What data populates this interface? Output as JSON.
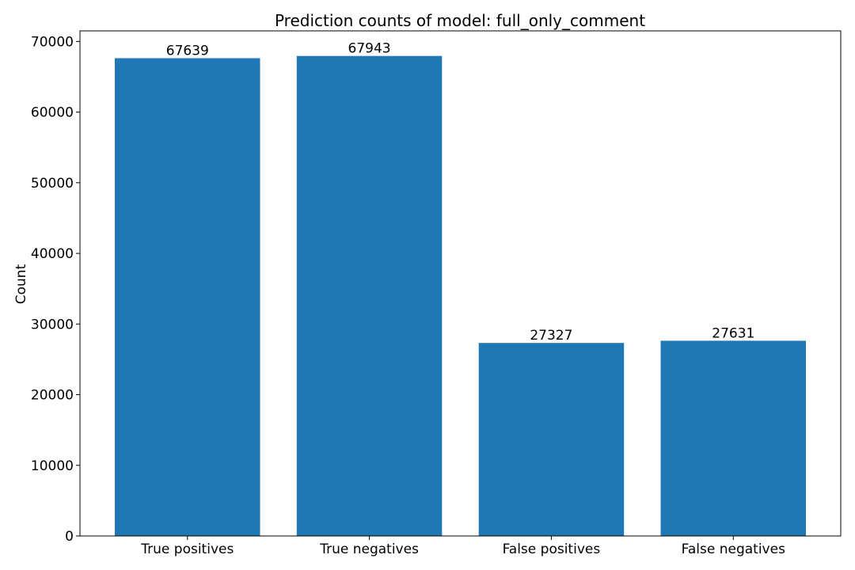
{
  "chart_data": {
    "type": "bar",
    "title": "Prediction counts of model: full_only_comment",
    "xlabel": "",
    "ylabel": "Count",
    "categories": [
      "True positives",
      "True negatives",
      "False positives",
      "False negatives"
    ],
    "values": [
      67639,
      67943,
      27327,
      27631
    ],
    "value_labels": [
      "67639",
      "67943",
      "27327",
      "27631"
    ],
    "ylim": [
      0,
      71500
    ],
    "yticks": [
      0,
      10000,
      20000,
      30000,
      40000,
      50000,
      60000,
      70000
    ],
    "ytick_labels": [
      "0",
      "10000",
      "20000",
      "30000",
      "40000",
      "50000",
      "60000",
      "70000"
    ],
    "grid": false,
    "legend": "none",
    "colors": {
      "bar": "#1f77b4",
      "axis": "#000000",
      "background": "#ffffff"
    }
  }
}
